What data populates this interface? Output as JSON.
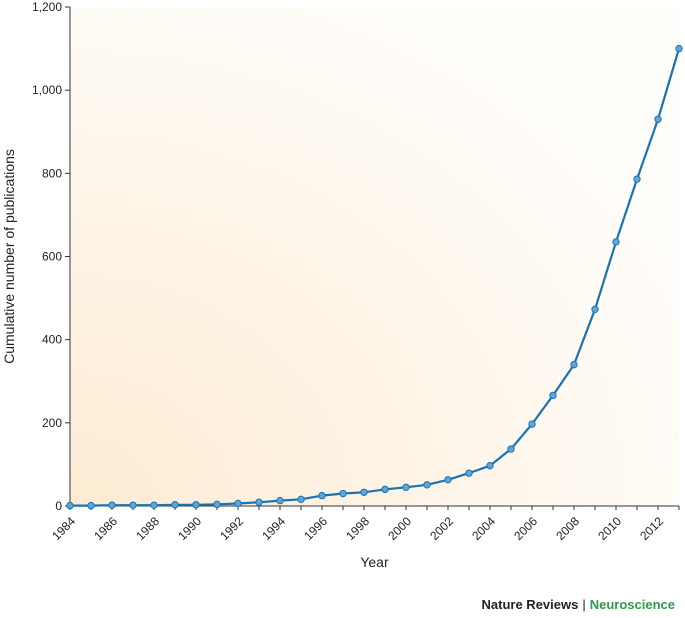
{
  "chart_data": {
    "type": "line",
    "xlabel": "Year",
    "ylabel": "Cumulative number of publications",
    "xlim": [
      1984,
      2013
    ],
    "ylim": [
      0,
      1200
    ],
    "x_ticks": [
      "1984",
      "1986",
      "1988",
      "1990",
      "1992",
      "1994",
      "1996",
      "1998",
      "2000",
      "2002",
      "2004",
      "2006",
      "2008",
      "2010",
      "2012"
    ],
    "y_ticks": [
      "0",
      "200",
      "400",
      "600",
      "800",
      "1,000",
      "1,200"
    ],
    "grid": false,
    "series": [
      {
        "x": [
          1984,
          1985,
          1986,
          1987,
          1988,
          1989,
          1990,
          1991,
          1992,
          1993,
          1994,
          1995,
          1996,
          1997,
          1998,
          1999,
          2000,
          2001,
          2002,
          2003,
          2004,
          2005,
          2006,
          2007,
          2008,
          2009,
          2010,
          2011,
          2012,
          2013
        ],
        "values": [
          1,
          1,
          2,
          2,
          2,
          3,
          3,
          4,
          6,
          9,
          13,
          16,
          25,
          30,
          33,
          40,
          45,
          51,
          63,
          79,
          97,
          137,
          197,
          266,
          340,
          473,
          635,
          786,
          930,
          1100
        ]
      }
    ],
    "colors": {
      "line": "#1a73b0",
      "marker_fill": "#5fa6d8",
      "background_warm": "#fcebd2",
      "background_light": "#fffdfa"
    }
  },
  "credit": {
    "journal": "Nature Reviews",
    "separator": "|",
    "subject": "Neuroscience"
  }
}
